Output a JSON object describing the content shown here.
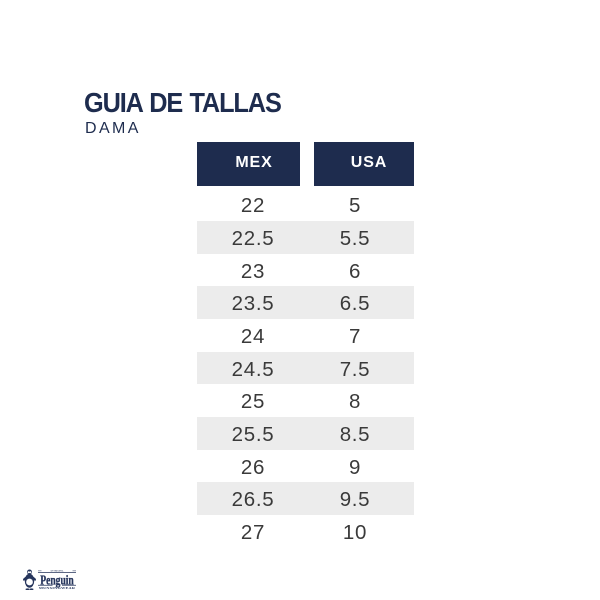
{
  "header": {
    "title": "GUIA DE TALLAS",
    "subtitle": "DAMA"
  },
  "table": {
    "columns": [
      "MEX",
      "USA"
    ],
    "rows": [
      [
        "22",
        "5"
      ],
      [
        "22.5",
        "5.5"
      ],
      [
        "23",
        "6"
      ],
      [
        "23.5",
        "6.5"
      ],
      [
        "24",
        "7"
      ],
      [
        "24.5",
        "7.5"
      ],
      [
        "25",
        "8"
      ],
      [
        "25.5",
        "8.5"
      ],
      [
        "26",
        "9"
      ],
      [
        "26.5",
        "9.5"
      ],
      [
        "27",
        "10"
      ]
    ]
  },
  "logo": {
    "top_text": "AN ORIGINAL",
    "name": "Penguin",
    "by_text": "BY",
    "bottom_text": "MUNSINGWEAR"
  },
  "colors": {
    "navy": "#1e2c4e",
    "stripe": "#ececec",
    "row_text": "#3a3a3a",
    "background": "#ffffff"
  }
}
